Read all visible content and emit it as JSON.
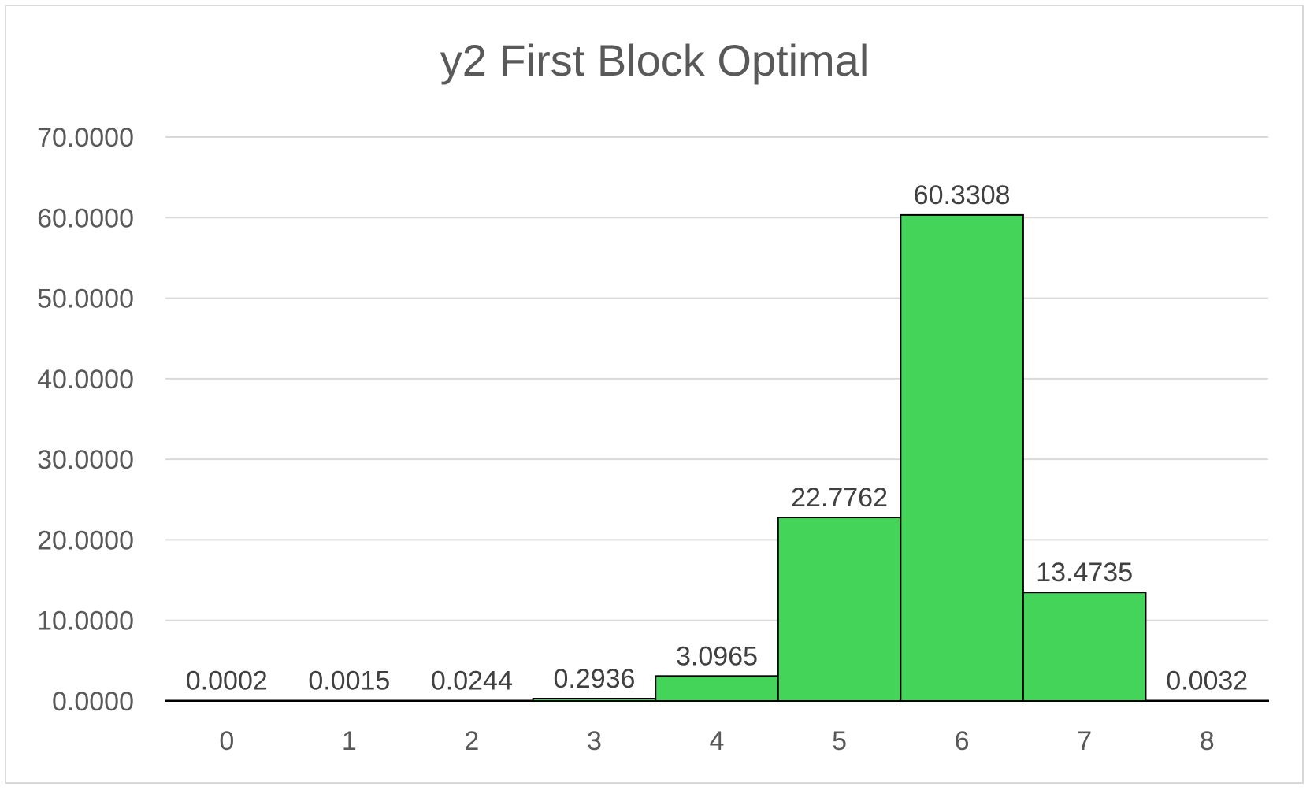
{
  "chart_data": {
    "type": "bar",
    "title": "y2 First Block Optimal",
    "xlabel": "",
    "ylabel": "",
    "categories": [
      "0",
      "1",
      "2",
      "3",
      "4",
      "5",
      "6",
      "7",
      "8"
    ],
    "values": [
      0.0002,
      0.0015,
      0.0244,
      0.2936,
      3.0965,
      22.7762,
      60.3308,
      13.4735,
      0.0032
    ],
    "data_labels": [
      "0.0002",
      "0.0015",
      "0.0244",
      "0.2936",
      "3.0965",
      "22.7762",
      "60.3308",
      "13.4735",
      "0.0032"
    ],
    "ylim": [
      0,
      70
    ],
    "yticks": [
      "0.0000",
      "10.0000",
      "20.0000",
      "30.0000",
      "40.0000",
      "50.0000",
      "60.0000",
      "70.0000"
    ],
    "grid": true,
    "legend": "none",
    "bar_color": "#44d45a",
    "bar_edge_color": "#000000",
    "grid_color": "#d9d9d9"
  }
}
